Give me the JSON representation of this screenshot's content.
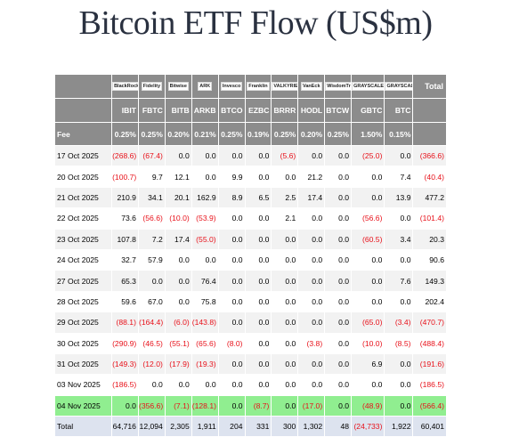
{
  "title": "Bitcoin ETF Flow (US$m)",
  "colors": {
    "header_bg": "#8c8c8c",
    "negative": "#e8111a",
    "highlight_row": "#90ee90",
    "total_row": "#dde3ef"
  },
  "header": {
    "logos": [
      "BlackRock",
      "Fidelity",
      "Bitwise",
      "ARK",
      "Invesco",
      "Franklin",
      "VALKYRIE",
      "VanEck",
      "WisdomTree",
      "GRAYSCALE",
      "GRAYSCALE"
    ],
    "total_label": "Total",
    "tickers": [
      "IBIT",
      "FBTC",
      "BITB",
      "ARKB",
      "BTCO",
      "EZBC",
      "BRRR",
      "HODL",
      "BTCW",
      "GBTC",
      "BTC"
    ],
    "fee_label": "Fee",
    "fees": [
      "0.25%",
      "0.25%",
      "0.20%",
      "0.21%",
      "0.25%",
      "0.19%",
      "0.25%",
      "0.20%",
      "0.25%",
      "1.50%",
      "0.15%"
    ]
  },
  "rows": [
    {
      "date": "17 Oct 2025",
      "values": [
        "(268.6)",
        "(67.4)",
        "0.0",
        "0.0",
        "0.0",
        "0.0",
        "(5.6)",
        "0.0",
        "0.0",
        "(25.0)",
        "0.0",
        "(366.6)"
      ]
    },
    {
      "date": "20 Oct 2025",
      "values": [
        "(100.7)",
        "9.7",
        "12.1",
        "0.0",
        "9.9",
        "0.0",
        "0.0",
        "21.2",
        "0.0",
        "0.0",
        "7.4",
        "(40.4)"
      ]
    },
    {
      "date": "21 Oct 2025",
      "values": [
        "210.9",
        "34.1",
        "20.1",
        "162.9",
        "8.9",
        "6.5",
        "2.5",
        "17.4",
        "0.0",
        "0.0",
        "13.9",
        "477.2"
      ]
    },
    {
      "date": "22 Oct 2025",
      "values": [
        "73.6",
        "(56.6)",
        "(10.0)",
        "(53.9)",
        "0.0",
        "0.0",
        "2.1",
        "0.0",
        "0.0",
        "(56.6)",
        "0.0",
        "(101.4)"
      ]
    },
    {
      "date": "23 Oct 2025",
      "values": [
        "107.8",
        "7.2",
        "17.4",
        "(55.0)",
        "0.0",
        "0.0",
        "0.0",
        "0.0",
        "0.0",
        "(60.5)",
        "3.4",
        "20.3"
      ]
    },
    {
      "date": "24 Oct 2025",
      "values": [
        "32.7",
        "57.9",
        "0.0",
        "0.0",
        "0.0",
        "0.0",
        "0.0",
        "0.0",
        "0.0",
        "0.0",
        "0.0",
        "90.6"
      ]
    },
    {
      "date": "27 Oct 2025",
      "values": [
        "65.3",
        "0.0",
        "0.0",
        "76.4",
        "0.0",
        "0.0",
        "0.0",
        "0.0",
        "0.0",
        "0.0",
        "7.6",
        "149.3"
      ]
    },
    {
      "date": "28 Oct 2025",
      "values": [
        "59.6",
        "67.0",
        "0.0",
        "75.8",
        "0.0",
        "0.0",
        "0.0",
        "0.0",
        "0.0",
        "0.0",
        "0.0",
        "202.4"
      ]
    },
    {
      "date": "29 Oct 2025",
      "values": [
        "(88.1)",
        "(164.4)",
        "(6.0)",
        "(143.8)",
        "0.0",
        "0.0",
        "0.0",
        "0.0",
        "0.0",
        "(65.0)",
        "(3.4)",
        "(470.7)"
      ]
    },
    {
      "date": "30 Oct 2025",
      "values": [
        "(290.9)",
        "(46.5)",
        "(55.1)",
        "(65.6)",
        "(8.0)",
        "0.0",
        "0.0",
        "(3.8)",
        "0.0",
        "(10.0)",
        "(8.5)",
        "(488.4)"
      ]
    },
    {
      "date": "31 Oct 2025",
      "values": [
        "(149.3)",
        "(12.0)",
        "(17.9)",
        "(19.3)",
        "0.0",
        "0.0",
        "0.0",
        "0.0",
        "0.0",
        "6.9",
        "0.0",
        "(191.6)"
      ]
    },
    {
      "date": "03 Nov 2025",
      "values": [
        "(186.5)",
        "0.0",
        "0.0",
        "0.0",
        "0.0",
        "0.0",
        "0.0",
        "0.0",
        "0.0",
        "0.0",
        "0.0",
        "(186.5)"
      ]
    },
    {
      "date": "04 Nov 2025",
      "highlight": true,
      "values": [
        "0.0",
        "(356.6)",
        "(7.1)",
        "(128.1)",
        "0.0",
        "(8.7)",
        "0.0",
        "(17.0)",
        "0.0",
        "(48.9)",
        "0.0",
        "(566.4)"
      ]
    }
  ],
  "total_row": {
    "label": "Total",
    "values": [
      "64,716",
      "12,094",
      "2,305",
      "1,911",
      "204",
      "331",
      "300",
      "1,302",
      "48",
      "(24,733)",
      "1,922",
      "60,401"
    ]
  }
}
